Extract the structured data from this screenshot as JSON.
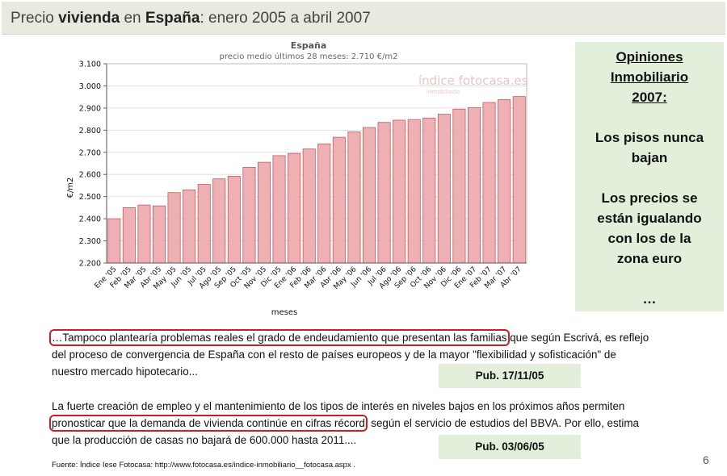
{
  "title": {
    "pre": "Precio ",
    "bold1": "vivienda",
    "mid": " en ",
    "bold2": "España",
    "post": ": enero 2005 a abril 2007"
  },
  "chart_data": {
    "type": "bar",
    "title": "España",
    "subtitle": "precio medio últimos 28 meses: 2.710 €/m2",
    "watermark": "índice fotocasa.es",
    "watermark_sub": "inmobiliario",
    "xlabel": "meses",
    "ylabel": "€/m2",
    "ylim": [
      2200,
      3100
    ],
    "yticks": [
      2200,
      2300,
      2400,
      2500,
      2600,
      2700,
      2800,
      2900,
      3000,
      3100
    ],
    "ytick_labels": [
      "2.200",
      "2.300",
      "2.400",
      "2.500",
      "2.600",
      "2.700",
      "2.800",
      "2.900",
      "3.000",
      "3.100"
    ],
    "categories": [
      "Ene '05",
      "Feb '05",
      "Mar '05",
      "Abr '05",
      "May '05",
      "Jun '05",
      "Jul '05",
      "Ago '05",
      "Sep '05",
      "Oct '05",
      "Nov '05",
      "Dic '05",
      "Ene '06",
      "Feb '06",
      "Mar '06",
      "Abr '06",
      "May '06",
      "Jun '06",
      "Jul '06",
      "Ago '06",
      "Sep '06",
      "Oct '06",
      "Nov '06",
      "Dic '06",
      "Ene '07",
      "Feb '07",
      "Mar '07",
      "Abr '07"
    ],
    "values": [
      2400,
      2450,
      2462,
      2458,
      2518,
      2530,
      2555,
      2580,
      2592,
      2632,
      2655,
      2685,
      2695,
      2715,
      2738,
      2768,
      2792,
      2812,
      2835,
      2845,
      2848,
      2855,
      2872,
      2895,
      2902,
      2925,
      2938,
      2952
    ],
    "bar_color": "#eeb0b2",
    "bar_edge": "#c45a62",
    "grid": true
  },
  "opinion": {
    "heading": [
      "Opiniones",
      "Inmobiliario",
      "2007:"
    ],
    "line1": [
      "Los pisos nunca",
      "bajan"
    ],
    "line2": [
      "Los precios se",
      "están igualando",
      "con los de la",
      "zona euro"
    ],
    "ellipsis": "…"
  },
  "quote1": {
    "highlight": "…Tampoco plantearía problemas reales el grado de endeudamiento que presentan las familias",
    "after": " que según Escrivá, es reflejo",
    "line2": "del proceso de convergencia de España con el resto de países europeos y de la mayor \"flexibilidad y sofisticación\" de",
    "line3": "nuestro mercado hipotecario...",
    "pub": "Pub. 17/11/05"
  },
  "quote2": {
    "line1": "La fuerte creación de empleo y el mantenimiento de los tipos de interés en niveles bajos en los próximos años permiten",
    "highlight": "pronosticar que la demanda de vivienda continúe en cifras récord",
    "after": ", según el servicio de estudios del BBVA. Por ello, estima",
    "line3": "que la producción de casas no bajará de 600.000 hasta 2011....",
    "pub": "Pub. 03/06/05"
  },
  "source": "Fuente: Índice Iese Fotocasa: http://www.fotocasa.es/indice-inmobiliario__fotocasa.aspx .",
  "page_number": "6"
}
